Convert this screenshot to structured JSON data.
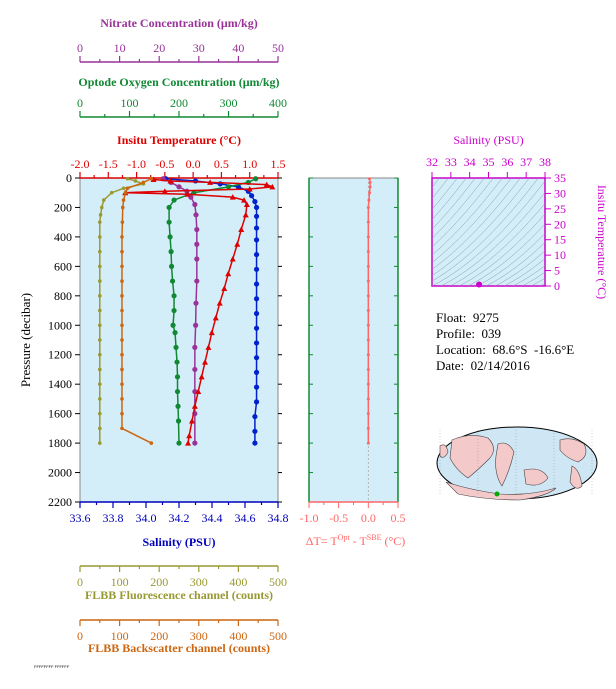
{
  "colors": {
    "nitrate": "#993399",
    "oxygen": "#118833",
    "temperature": "#dd0000",
    "salinity_axis": "#0000bb",
    "fluorescence": "#999933",
    "backscatter": "#cc6611",
    "salinity_panel": "#cc00cc",
    "dt_panel": "#ff6666",
    "plot_bg": "#d3eef8",
    "salinity_series": "#0022cc"
  },
  "float_info": {
    "float": "Float:  9275",
    "profile": "Profile:  039",
    "location": "Location:  68.6°S  -16.6°E",
    "date": "Date:  02/14/2016"
  },
  "footer_text": "FFFFFFFF FFFFFF",
  "chart_data": [
    {
      "type": "line",
      "panel": "main-profile",
      "ylabel": "Pressure (decibar)",
      "ylim": [
        2200,
        0
      ],
      "yticks": [
        "0",
        "200",
        "400",
        "600",
        "800",
        "1000",
        "1200",
        "1400",
        "1600",
        "1800",
        "2000",
        "2200"
      ],
      "axes": {
        "nitrate": {
          "label": "Nitrate Concentration (μm/kg)",
          "range": [
            0,
            50
          ],
          "ticks": [
            "0",
            "10",
            "20",
            "30",
            "40",
            "50"
          ]
        },
        "oxygen": {
          "label": "Optode Oxygen Concentration (μm/kg)",
          "range": [
            0,
            400
          ],
          "ticks": [
            "0",
            "100",
            "200",
            "300",
            "400"
          ]
        },
        "temperature": {
          "label": "Insitu Temperature (°C)",
          "range": [
            -2.0,
            1.5
          ],
          "ticks": [
            "-2.0",
            "-1.5",
            "-1.0",
            "-0.5",
            "0.0",
            "0.5",
            "1.0",
            "1.5"
          ]
        },
        "salinity": {
          "label": "Salinity (PSU)",
          "range": [
            33.6,
            34.8
          ],
          "ticks": [
            "33.6",
            "33.8",
            "34.0",
            "34.2",
            "34.4",
            "34.6",
            "34.8"
          ]
        },
        "fluorescence": {
          "label": "FLBB Fluorescence channel (counts)",
          "range": [
            0,
            500
          ],
          "ticks": [
            "0",
            "100",
            "200",
            "300",
            "400",
            "500"
          ]
        },
        "backscatter": {
          "label": "FLBB Backscatter channel (counts)",
          "range": [
            0,
            500
          ],
          "ticks": [
            "0",
            "100",
            "200",
            "300",
            "400",
            "500"
          ]
        }
      },
      "series": [
        {
          "axis": "salinity",
          "color": "#0022cc",
          "points": [
            [
              34.12,
              5
            ],
            [
              34.3,
              20
            ],
            [
              34.45,
              40
            ],
            [
              34.56,
              60
            ],
            [
              34.62,
              90
            ],
            [
              34.64,
              120
            ],
            [
              34.66,
              160
            ],
            [
              34.67,
              200
            ],
            [
              34.67,
              260
            ],
            [
              34.67,
              340
            ],
            [
              34.67,
              420
            ],
            [
              34.67,
              520
            ],
            [
              34.67,
              620
            ],
            [
              34.67,
              720
            ],
            [
              34.67,
              820
            ],
            [
              34.67,
              920
            ],
            [
              34.67,
              1020
            ],
            [
              34.67,
              1120
            ],
            [
              34.67,
              1220
            ],
            [
              34.67,
              1320
            ],
            [
              34.67,
              1420
            ],
            [
              34.67,
              1520
            ],
            [
              34.66,
              1620
            ],
            [
              34.66,
              1720
            ],
            [
              34.66,
              1800
            ]
          ]
        },
        {
          "axis": "nitrate",
          "color": "#993399",
          "points": [
            [
              21,
              5
            ],
            [
              23,
              30
            ],
            [
              25,
              60
            ],
            [
              27,
              90
            ],
            [
              28,
              130
            ],
            [
              29,
              180
            ],
            [
              29.3,
              250
            ],
            [
              29.5,
              350
            ],
            [
              29.5,
              450
            ],
            [
              29.5,
              550
            ],
            [
              29.5,
              700
            ],
            [
              29.3,
              850
            ],
            [
              29.2,
              1000
            ],
            [
              29,
              1150
            ],
            [
              29,
              1300
            ],
            [
              29,
              1450
            ],
            [
              29,
              1600
            ],
            [
              29,
              1800
            ]
          ]
        },
        {
          "axis": "oxygen",
          "color": "#118833",
          "points": [
            [
              355,
              5
            ],
            [
              340,
              30
            ],
            [
              300,
              60
            ],
            [
              230,
              100
            ],
            [
              190,
              150
            ],
            [
              180,
              200
            ],
            [
              180,
              300
            ],
            [
              182,
              400
            ],
            [
              184,
              500
            ],
            [
              185,
              600
            ],
            [
              187,
              700
            ],
            [
              190,
              800
            ],
            [
              190,
              900
            ],
            [
              188,
              1000
            ],
            [
              192,
              1050
            ],
            [
              194,
              1150
            ],
            [
              196,
              1250
            ],
            [
              197,
              1350
            ],
            [
              197,
              1450
            ],
            [
              198,
              1550
            ],
            [
              199,
              1650
            ],
            [
              200,
              1800
            ]
          ]
        },
        {
          "axis": "temperature",
          "color": "#dd0000",
          "points": [
            [
              -0.7,
              10
            ],
            [
              -0.4,
              20
            ],
            [
              0.3,
              30
            ],
            [
              1.3,
              45
            ],
            [
              1.4,
              60
            ],
            [
              1.0,
              75
            ],
            [
              -0.5,
              90
            ],
            [
              -1.2,
              100
            ],
            [
              -0.1,
              110
            ],
            [
              0.7,
              130
            ],
            [
              0.9,
              150
            ],
            [
              0.95,
              180
            ],
            [
              0.93,
              250
            ],
            [
              0.85,
              350
            ],
            [
              0.78,
              450
            ],
            [
              0.7,
              550
            ],
            [
              0.62,
              650
            ],
            [
              0.55,
              750
            ],
            [
              0.47,
              850
            ],
            [
              0.4,
              950
            ],
            [
              0.33,
              1050
            ],
            [
              0.27,
              1150
            ],
            [
              0.21,
              1250
            ],
            [
              0.15,
              1350
            ],
            [
              0.09,
              1450
            ],
            [
              0.03,
              1550
            ],
            [
              -0.02,
              1650
            ],
            [
              -0.07,
              1750
            ],
            [
              -0.09,
              1800
            ]
          ]
        },
        {
          "axis": "fluorescence",
          "color": "#999933",
          "points": [
            [
              120,
              5
            ],
            [
              140,
              20
            ],
            [
              160,
              40
            ],
            [
              110,
              70
            ],
            [
              80,
              100
            ],
            [
              60,
              150
            ],
            [
              55,
              200
            ],
            [
              52,
              250
            ],
            [
              50,
              300
            ],
            [
              50,
              400
            ],
            [
              50,
              500
            ],
            [
              50,
              600
            ],
            [
              50,
              700
            ],
            [
              50,
              800
            ],
            [
              50,
              900
            ],
            [
              50,
              1000
            ],
            [
              50,
              1100
            ],
            [
              50,
              1200
            ],
            [
              50,
              1300
            ],
            [
              50,
              1400
            ],
            [
              50,
              1500
            ],
            [
              50,
              1600
            ],
            [
              50,
              1700
            ],
            [
              50,
              1800
            ]
          ]
        },
        {
          "axis": "backscatter",
          "color": "#cc6611",
          "points": [
            [
              180,
              5
            ],
            [
              160,
              30
            ],
            [
              120,
              70
            ],
            [
              115,
              100
            ],
            [
              110,
              150
            ],
            [
              108,
              200
            ],
            [
              107,
              300
            ],
            [
              106,
              400
            ],
            [
              106,
              500
            ],
            [
              106,
              600
            ],
            [
              106,
              700
            ],
            [
              106,
              800
            ],
            [
              106,
              900
            ],
            [
              106,
              1000
            ],
            [
              106,
              1100
            ],
            [
              106,
              1200
            ],
            [
              106,
              1300
            ],
            [
              106,
              1400
            ],
            [
              106,
              1500
            ],
            [
              106,
              1600
            ],
            [
              106,
              1700
            ],
            [
              180,
              1800
            ]
          ]
        }
      ]
    },
    {
      "type": "line",
      "panel": "dt-profile",
      "xlabel": "ΔT= T^Opt - T^SBE (°C)",
      "xlim": [
        -1.0,
        0.5
      ],
      "xticks": [
        "-1.0",
        "-0.5",
        "0.0",
        "0.5"
      ],
      "ylim": [
        2200,
        0
      ],
      "series": [
        {
          "color": "#ff6666",
          "points": [
            [
              0.02,
              5
            ],
            [
              0.03,
              30
            ],
            [
              0.03,
              60
            ],
            [
              0.02,
              100
            ],
            [
              0.01,
              150
            ],
            [
              0.0,
              200
            ],
            [
              0.0,
              300
            ],
            [
              0.0,
              400
            ],
            [
              0.0,
              500
            ],
            [
              0.0,
              600
            ],
            [
              0.0,
              700
            ],
            [
              0.0,
              800
            ],
            [
              0.0,
              900
            ],
            [
              0.0,
              1000
            ],
            [
              0.0,
              1100
            ],
            [
              0.0,
              1200
            ],
            [
              0.0,
              1300
            ],
            [
              0.0,
              1400
            ],
            [
              0.0,
              1500
            ],
            [
              0.0,
              1600
            ],
            [
              0.0,
              1700
            ],
            [
              0.0,
              1800
            ]
          ]
        }
      ]
    },
    {
      "type": "scatter",
      "panel": "ts-diagram",
      "title": "Salinity (PSU)",
      "ylabel": "Insitu Temperature (°C)",
      "xlim": [
        32,
        38
      ],
      "ylim": [
        0,
        35
      ],
      "xticks": [
        "32",
        "33",
        "34",
        "35",
        "36",
        "37",
        "38"
      ],
      "yticks": [
        "0",
        "5",
        "10",
        "15",
        "20",
        "25",
        "30",
        "35"
      ],
      "points": [
        [
          34.5,
          0.5
        ]
      ]
    }
  ]
}
